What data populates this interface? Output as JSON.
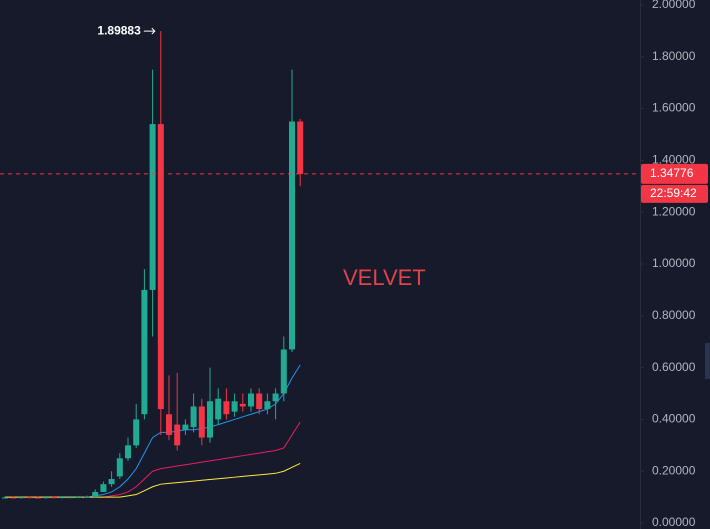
{
  "chart_data": {
    "type": "candlestick",
    "watermark": "VELVET",
    "categories": [
      null,
      null,
      null,
      null,
      null,
      null,
      null,
      null,
      null,
      null,
      null,
      null,
      null,
      null,
      null,
      null,
      null,
      null,
      null,
      null,
      null,
      null,
      null,
      null,
      null,
      null,
      null,
      null,
      null,
      null,
      null,
      null,
      null,
      null,
      null,
      null,
      null
    ],
    "open": [
      0.098,
      0.099,
      0.098,
      0.1,
      0.099,
      0.098,
      0.1,
      0.099,
      0.1,
      0.1,
      0.101,
      0.1,
      0.12,
      0.15,
      0.18,
      0.25,
      0.3,
      0.42,
      0.9,
      1.54,
      0.42,
      0.38,
      0.36,
      0.37,
      0.45,
      0.33,
      0.4,
      0.47,
      0.43,
      0.46,
      0.45,
      0.5,
      0.44,
      0.47,
      0.5,
      0.67,
      1.55
    ],
    "high": [
      0.103,
      0.103,
      0.104,
      0.103,
      0.102,
      0.104,
      0.103,
      0.104,
      0.104,
      0.105,
      0.106,
      0.13,
      0.16,
      0.2,
      0.27,
      0.33,
      0.46,
      0.98,
      1.75,
      1.89883,
      0.57,
      0.58,
      0.4,
      0.5,
      0.48,
      0.6,
      0.52,
      0.52,
      0.5,
      0.5,
      0.52,
      0.52,
      0.5,
      0.52,
      0.72,
      1.75,
      1.56
    ],
    "low": [
      0.094,
      0.095,
      0.094,
      0.095,
      0.094,
      0.094,
      0.095,
      0.095,
      0.096,
      0.096,
      0.097,
      0.1,
      0.12,
      0.14,
      0.17,
      0.24,
      0.29,
      0.4,
      0.72,
      0.34,
      0.32,
      0.28,
      0.34,
      0.35,
      0.3,
      0.31,
      0.38,
      0.4,
      0.41,
      0.43,
      0.43,
      0.42,
      0.42,
      0.4,
      0.47,
      0.66,
      1.3
    ],
    "close": [
      0.099,
      0.098,
      0.1,
      0.099,
      0.098,
      0.1,
      0.099,
      0.1,
      0.1,
      0.101,
      0.102,
      0.12,
      0.15,
      0.17,
      0.25,
      0.3,
      0.4,
      0.9,
      1.54,
      0.44,
      0.34,
      0.3,
      0.38,
      0.45,
      0.33,
      0.47,
      0.48,
      0.42,
      0.47,
      0.45,
      0.5,
      0.44,
      0.47,
      0.5,
      0.67,
      1.55,
      1.34776
    ],
    "up_color": "#22ab94",
    "down_color": "#f23645",
    "series": [
      {
        "color": "#2196f3",
        "values": [
          0.1,
          0.1,
          0.1,
          0.1,
          0.1,
          0.1,
          0.1,
          0.1,
          0.1,
          0.1,
          0.1,
          0.105,
          0.11,
          0.12,
          0.14,
          0.17,
          0.21,
          0.27,
          0.33,
          0.35,
          0.35,
          0.355,
          0.36,
          0.36,
          0.365,
          0.37,
          0.38,
          0.39,
          0.4,
          0.41,
          0.42,
          0.43,
          0.44,
          0.46,
          0.5,
          0.56,
          0.61
        ]
      },
      {
        "color": "#e91e63",
        "values": [
          0.1,
          0.1,
          0.1,
          0.1,
          0.1,
          0.1,
          0.1,
          0.1,
          0.1,
          0.1,
          0.1,
          0.1,
          0.1,
          0.105,
          0.11,
          0.12,
          0.14,
          0.17,
          0.2,
          0.21,
          0.215,
          0.22,
          0.225,
          0.23,
          0.235,
          0.24,
          0.245,
          0.25,
          0.255,
          0.26,
          0.265,
          0.27,
          0.275,
          0.28,
          0.29,
          0.34,
          0.39
        ]
      },
      {
        "color": "#ffeb3b",
        "values": [
          0.1,
          0.1,
          0.1,
          0.1,
          0.1,
          0.1,
          0.1,
          0.1,
          0.1,
          0.1,
          0.1,
          0.1,
          0.1,
          0.1,
          0.1,
          0.105,
          0.11,
          0.125,
          0.14,
          0.15,
          0.153,
          0.156,
          0.159,
          0.162,
          0.165,
          0.168,
          0.171,
          0.174,
          0.177,
          0.18,
          0.183,
          0.186,
          0.189,
          0.192,
          0.2,
          0.215,
          0.23
        ]
      }
    ],
    "high_annotation": 1.89883,
    "last_price": {
      "value": 1.34776,
      "label": "1.34776"
    },
    "countdown": "22:59:42",
    "ylim": [
      -0.023,
      2.019
    ],
    "yticks": [
      {
        "value": 0,
        "label": "0.00000"
      },
      {
        "value": 0.2,
        "label": "0.20000"
      },
      {
        "value": 0.4,
        "label": "0.40000"
      },
      {
        "value": 0.6,
        "label": "0.60000"
      },
      {
        "value": 0.8,
        "label": "0.80000"
      },
      {
        "value": 1.0,
        "label": "1.00000"
      },
      {
        "value": 1.2,
        "label": "1.20000"
      },
      {
        "value": 1.4,
        "label": "1.40000"
      },
      {
        "value": 1.6,
        "label": "1.60000"
      },
      {
        "value": 1.8,
        "label": "1.80000"
      },
      {
        "value": 2.0,
        "label": "2.00000"
      }
    ]
  }
}
